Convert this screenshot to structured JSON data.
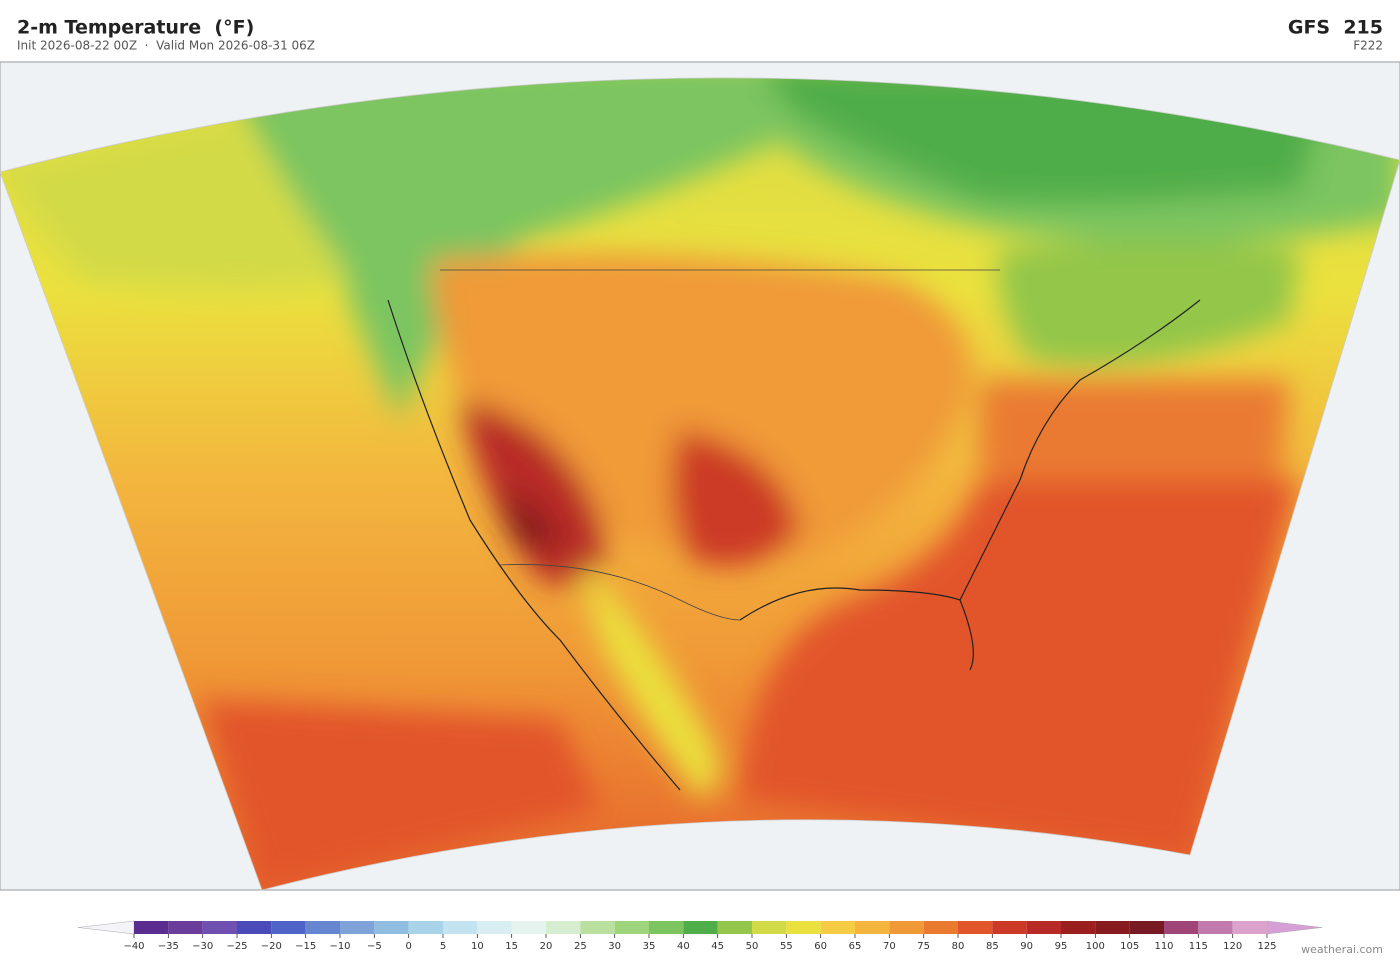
{
  "header": {
    "title": "2-m Temperature  (°F)",
    "subtitle": "Init 2026-08-22 00Z  ·  Valid Mon 2026-08-31 06Z",
    "model": "GFS  215",
    "forecast_hour": "F222"
  },
  "colorbar": {
    "ticks": [
      {
        "value": -40,
        "label": "−40"
      },
      {
        "value": -35,
        "label": "−35"
      },
      {
        "value": -30,
        "label": "−30"
      },
      {
        "value": -25,
        "label": "−25"
      },
      {
        "value": -20,
        "label": "−20"
      },
      {
        "value": -15,
        "label": "−15"
      },
      {
        "value": -10,
        "label": "−10"
      },
      {
        "value": -5,
        "label": "−5"
      },
      0,
      5,
      10,
      15,
      20,
      25,
      30,
      35,
      40,
      45,
      50,
      55,
      60,
      65,
      70,
      75,
      80,
      85,
      90,
      95,
      100,
      105,
      110,
      115,
      120,
      125
    ],
    "colors": [
      "#5b2d91",
      "#6a3d9a",
      "#6f4fb0",
      "#4a4ab8",
      "#4f64c8",
      "#6686d0",
      "#7fa3d9",
      "#90bde0",
      "#a9d3e8",
      "#c2e3ef",
      "#d8eef2",
      "#e5f4ee",
      "#d6edd0",
      "#b9e09f",
      "#9dd47c",
      "#7cc560",
      "#4fad4a",
      "#93c64a",
      "#d3da47",
      "#ebe13e",
      "#f5cc43",
      "#f3b53e",
      "#f09a37",
      "#ea7a30",
      "#e2542a",
      "#cc3a27",
      "#b82a25",
      "#9c1f1f",
      "#861a1f",
      "#771a24",
      "#a04577",
      "#c27aae",
      "#dba3cc"
    ],
    "under_color": "#f4f4f8",
    "over_color": "#d6a0d6",
    "credit": "weatherai.com"
  }
}
